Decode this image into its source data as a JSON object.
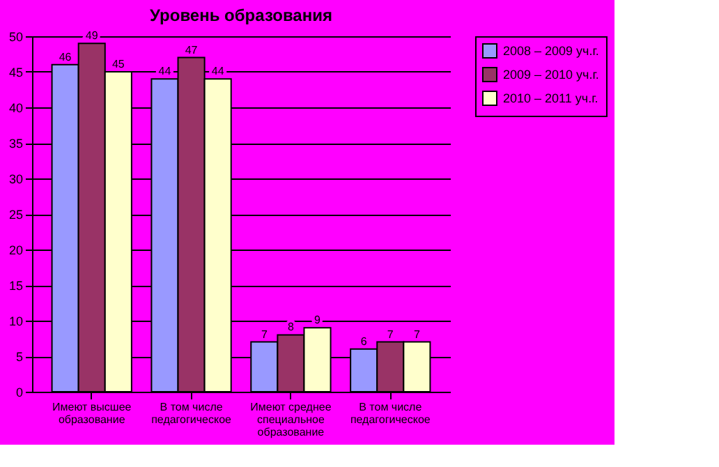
{
  "chart_data": {
    "type": "bar",
    "title": "Уровень образования",
    "categories": [
      "Имеют высшее образование",
      "В том числе педагогическое",
      "Имеют среднее специальное образование",
      "В том числе педагогическое"
    ],
    "series": [
      {
        "name": "2008 – 2009 уч.г.",
        "color": "#9999ff",
        "values": [
          46,
          44,
          7,
          6
        ]
      },
      {
        "name": "2009 – 2010 уч.г.",
        "color": "#993366",
        "values": [
          49,
          47,
          8,
          7
        ]
      },
      {
        "name": "2010 – 2011 уч.г.",
        "color": "#ffffcc",
        "values": [
          45,
          44,
          9,
          7
        ]
      }
    ],
    "ylim": [
      0,
      50
    ],
    "yticks": [
      0,
      5,
      10,
      15,
      20,
      25,
      30,
      35,
      40,
      45,
      50
    ],
    "grid": "y",
    "legend": "right",
    "data_labels": true
  }
}
